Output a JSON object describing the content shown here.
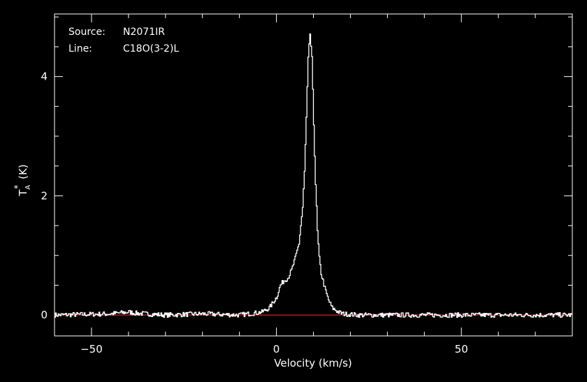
{
  "colors": {
    "background": "#000000",
    "axis": "#ffffff",
    "spectrum": "#ffffff",
    "baseline": "#cc2222"
  },
  "annotations": {
    "source_label": "Source:",
    "source_value": "N2071IR",
    "line_label": "Line:",
    "line_value": "C18O(3-2)L"
  },
  "chart_data": {
    "type": "line",
    "title": "",
    "xlabel": "Velocity (km/s)",
    "ylabel": {
      "main": "T",
      "sub": "A",
      "sup": "*",
      "unit": "(K)"
    },
    "xlim": [
      -60,
      80
    ],
    "ylim": [
      -0.35,
      5.05
    ],
    "x_ticks": [
      -50,
      0,
      50
    ],
    "y_ticks": [
      0,
      2,
      4
    ],
    "grid": false,
    "baseline_value": 0,
    "series": [
      {
        "line_shape": "step",
        "x": [
          -60,
          -45,
          -40,
          -38,
          -30,
          -20,
          -10,
          -4,
          -2,
          0,
          1,
          2,
          3,
          4,
          5,
          6,
          7,
          7.5,
          8,
          8.5,
          9,
          9.5,
          10,
          10.5,
          11,
          11.5,
          12,
          13,
          14,
          15,
          16,
          17,
          18,
          20,
          22,
          30,
          40,
          50,
          60,
          70,
          80
        ],
        "y": [
          0.0,
          0.02,
          0.05,
          0.03,
          0.0,
          0.02,
          0.0,
          0.05,
          0.12,
          0.3,
          0.5,
          0.58,
          0.62,
          0.75,
          0.95,
          1.2,
          1.8,
          2.4,
          3.3,
          4.3,
          4.72,
          4.3,
          3.2,
          2.2,
          1.4,
          0.95,
          0.7,
          0.45,
          0.25,
          0.12,
          0.08,
          0.04,
          0.02,
          0.01,
          0.0,
          0.0,
          0.0,
          0.0,
          0.0,
          0.0,
          0.0
        ]
      }
    ]
  }
}
